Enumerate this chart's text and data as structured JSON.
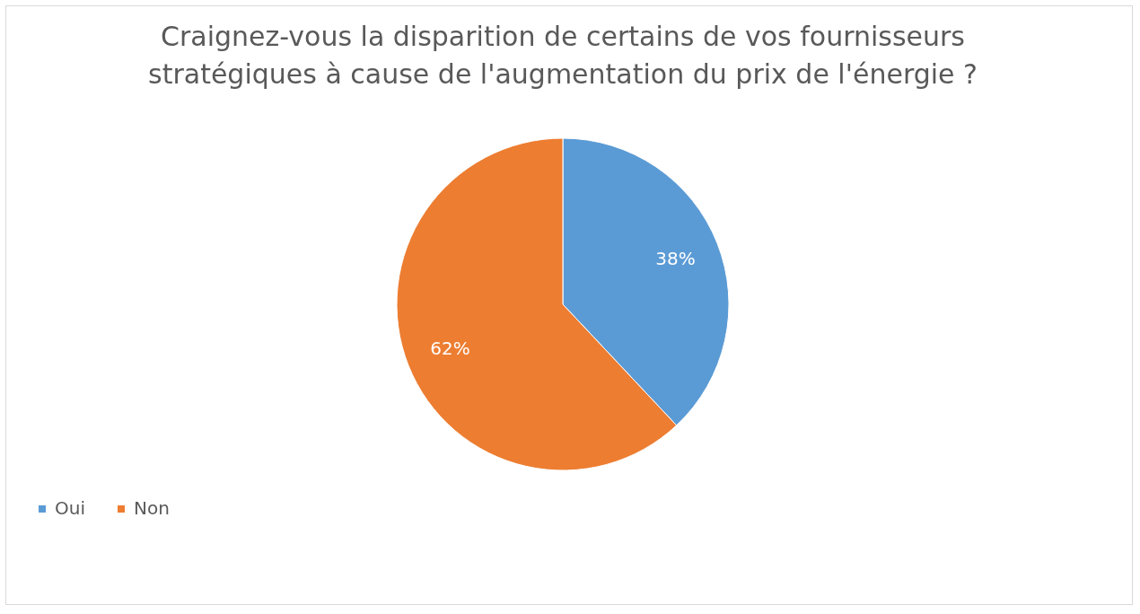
{
  "chart_data": {
    "type": "pie",
    "title": "Craignez-vous la disparition de certains de vos fournisseurs stratégiques à cause de l'augmentation du prix de l'énergie ?",
    "categories": [
      "Oui",
      "Non"
    ],
    "values": [
      38,
      62
    ],
    "colors": [
      "#5b9bd5",
      "#ed7d31"
    ],
    "value_labels": [
      "38%",
      "62%"
    ],
    "legend": "bottom"
  }
}
